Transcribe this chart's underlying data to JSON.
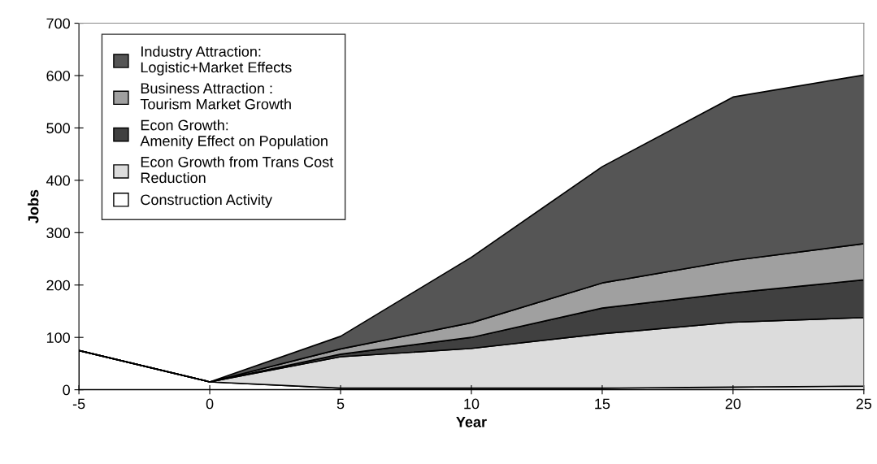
{
  "chart_data": {
    "type": "area",
    "stacked": true,
    "xlabel": "Year",
    "ylabel": "Jobs",
    "x": [
      -5,
      0,
      5,
      10,
      15,
      20,
      25
    ],
    "series": [
      {
        "name": "Construction Activity",
        "color": "#ffffff",
        "values": [
          75,
          15,
          3,
          3,
          3,
          5,
          7
        ]
      },
      {
        "name": "Econ Growth from Trans Cost\nReduction",
        "color": "#dcdcdc",
        "values": [
          0,
          0,
          60,
          76,
          104,
          124,
          131
        ]
      },
      {
        "name": "Econ Growth:\nAmenity Effect on Population",
        "color": "#404040",
        "values": [
          0,
          0,
          5,
          21,
          49,
          56,
          72
        ]
      },
      {
        "name": "Business Attraction :\nTourism Market Growth",
        "color": "#a0a0a0",
        "values": [
          0,
          0,
          10,
          28,
          48,
          62,
          69
        ]
      },
      {
        "name": "Industry Attraction:\nLogistic+Market Effects",
        "color": "#555555",
        "values": [
          0,
          0,
          24,
          125,
          222,
          312,
          322
        ]
      }
    ],
    "xlim": [
      -5,
      25
    ],
    "xticks": [
      -5,
      0,
      5,
      10,
      15,
      20,
      25
    ],
    "ylim": [
      0,
      700
    ],
    "yticks": [
      0,
      100,
      200,
      300,
      400,
      500,
      600,
      700
    ],
    "grid": false,
    "legend": "top left"
  }
}
